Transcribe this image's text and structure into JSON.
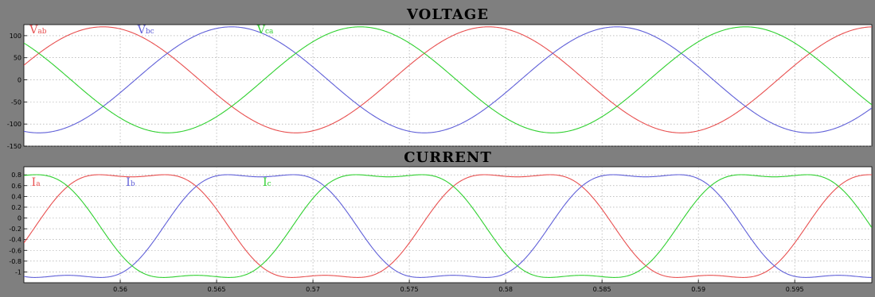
{
  "chart_data": [
    {
      "type": "line",
      "title": "VOLTAGE",
      "xlabel": "",
      "ylabel": "",
      "xlim": [
        0.555,
        0.599
      ],
      "ylim": [
        -150,
        125
      ],
      "yticks": [
        100,
        50,
        0,
        -50,
        -100,
        -150
      ],
      "xticks": [],
      "grid": true,
      "series": [
        {
          "name": "V",
          "sub": "ab",
          "color": "#e85050",
          "wave": "sine",
          "amplitude": 120,
          "offset": 0,
          "frequency": 50,
          "phase_deg": 106,
          "label_pos": [
            0.5553,
            105
          ]
        },
        {
          "name": "V",
          "sub": "bc",
          "color": "#6060d8",
          "wave": "sine",
          "amplitude": 120,
          "offset": 0,
          "frequency": 50,
          "phase_deg": -14,
          "label_pos": [
            0.5609,
            105
          ]
        },
        {
          "name": "V",
          "sub": "ca",
          "color": "#30d030",
          "wave": "sine",
          "amplitude": 120,
          "offset": 0,
          "frequency": 50,
          "phase_deg": 226,
          "label_pos": [
            0.5671,
            105
          ]
        }
      ]
    },
    {
      "type": "line",
      "title": "CURRENT",
      "xlabel": "",
      "ylabel": "",
      "xlim": [
        0.555,
        0.599
      ],
      "ylim": [
        -1.2,
        0.95
      ],
      "yticks": [
        0.8,
        0.6,
        0.4,
        0.2,
        0,
        -0.2,
        -0.4,
        -0.6,
        -0.8,
        -1
      ],
      "xticks": [
        0.56,
        0.565,
        0.57,
        0.575,
        0.58,
        0.585,
        0.59,
        0.595
      ],
      "grid": true,
      "series": [
        {
          "name": "I",
          "sub": "a",
          "color": "#e85050",
          "wave": "harmonic",
          "amplitude": 1.1,
          "offset": -0.15,
          "frequency": 50,
          "phase_deg": 79,
          "harmonic_ratio": 0.17,
          "label_pos": [
            0.5554,
            0.6
          ]
        },
        {
          "name": "I",
          "sub": "b",
          "color": "#6060d8",
          "wave": "harmonic",
          "amplitude": 1.1,
          "offset": -0.15,
          "frequency": 50,
          "phase_deg": -41,
          "harmonic_ratio": 0.17,
          "label_pos": [
            0.5603,
            0.6
          ]
        },
        {
          "name": "I",
          "sub": "c",
          "color": "#30d030",
          "wave": "harmonic",
          "amplitude": 1.1,
          "offset": -0.15,
          "frequency": 50,
          "phase_deg": 199,
          "harmonic_ratio": 0.17,
          "label_pos": [
            0.5674,
            0.6
          ]
        }
      ]
    }
  ]
}
